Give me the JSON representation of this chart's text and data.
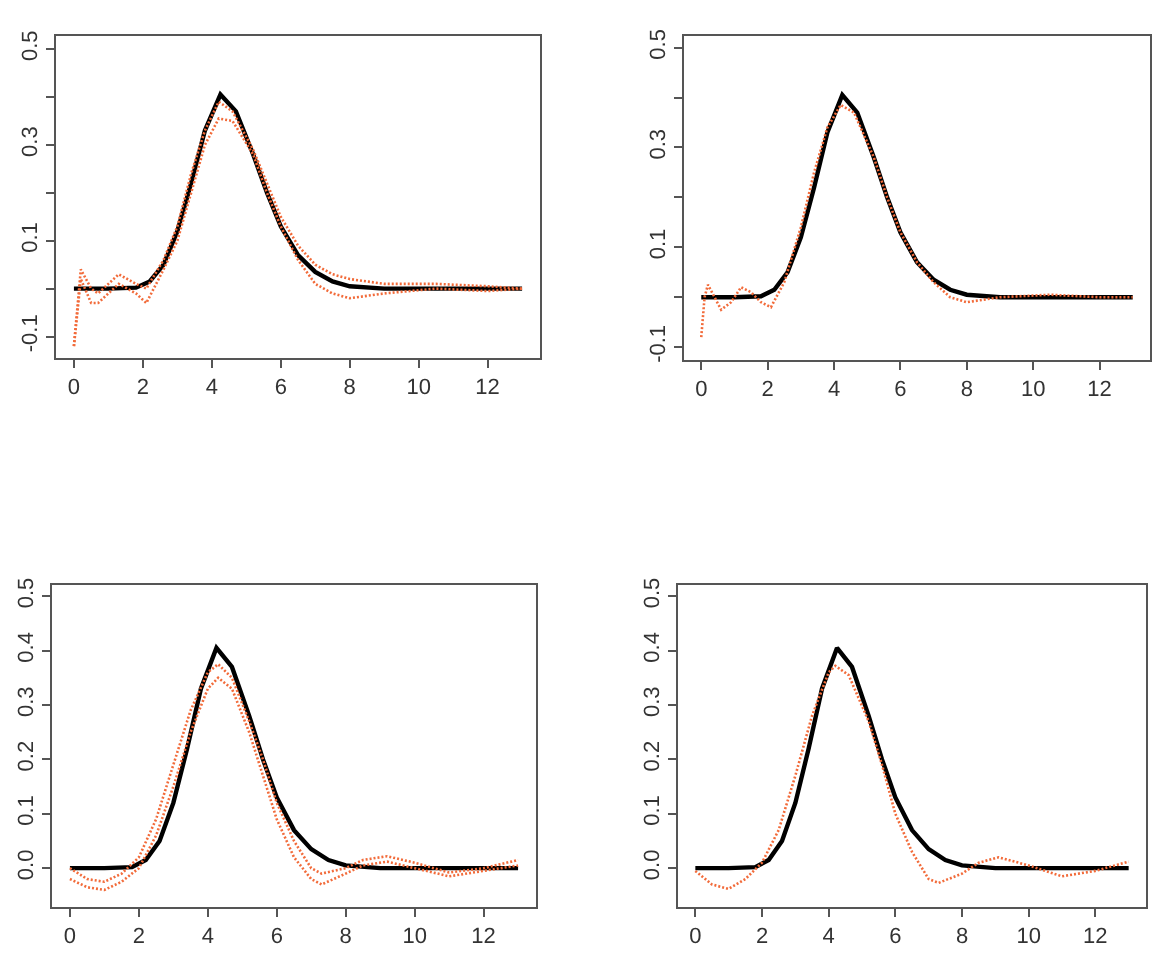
{
  "chart_data": [
    {
      "type": "line",
      "xlim": [
        -0.52,
        13.52
      ],
      "ylim": [
        -0.144,
        0.528
      ],
      "xticks": [
        0,
        2,
        4,
        6,
        8,
        10,
        12
      ],
      "yticks": [
        -0.1,
        {
          "value": 0,
          "label": null
        },
        0.1,
        {
          "value": 0.2,
          "label": null
        },
        0.3,
        {
          "value": 0.4,
          "label": null
        },
        0.5
      ],
      "series": [
        {
          "color": "#f26b3a",
          "line_style": "dotted",
          "x": [
            0,
            0.2,
            0.5,
            0.7,
            1.3,
            1.8,
            2.1,
            2.6,
            3,
            3.4,
            3.8,
            4.2,
            4.6,
            5.2,
            5.6,
            6,
            6.5,
            7,
            7.5,
            8,
            9,
            10.5,
            12,
            13
          ],
          "values": [
            -0.12,
            0.04,
            0.0,
            -0.01,
            0.03,
            0.01,
            0.0,
            0.06,
            0.13,
            0.24,
            0.33,
            0.39,
            0.37,
            0.29,
            0.22,
            0.15,
            0.09,
            0.05,
            0.03,
            0.02,
            0.01,
            0.01,
            0.005,
            0.0
          ]
        },
        {
          "color": "#f26b3a",
          "line_style": "dotted",
          "x": [
            0,
            0.2,
            0.5,
            0.7,
            1.3,
            1.8,
            2.1,
            2.6,
            3,
            3.4,
            3.8,
            4.2,
            4.6,
            5.2,
            5.6,
            6,
            6.5,
            7,
            7.5,
            8,
            9,
            10.5,
            12,
            13
          ],
          "values": [
            -0.12,
            0.02,
            -0.03,
            -0.03,
            0.01,
            -0.01,
            -0.03,
            0.04,
            0.1,
            0.2,
            0.3,
            0.355,
            0.35,
            0.28,
            0.2,
            0.13,
            0.06,
            0.01,
            -0.01,
            -0.02,
            -0.01,
            0.0,
            -0.005,
            0.0
          ]
        },
        {
          "color": "#000000",
          "line_style": "solid",
          "x": [
            0,
            1,
            1.8,
            2.2,
            2.6,
            3,
            3.4,
            3.8,
            4.25,
            4.7,
            5.2,
            5.6,
            6,
            6.5,
            7,
            7.5,
            8,
            9,
            13
          ],
          "values": [
            0,
            0,
            0.002,
            0.015,
            0.05,
            0.12,
            0.22,
            0.33,
            0.405,
            0.37,
            0.28,
            0.2,
            0.13,
            0.07,
            0.035,
            0.015,
            0.005,
            0,
            0
          ]
        }
      ]
    },
    {
      "type": "line",
      "xlim": [
        -0.52,
        13.52
      ],
      "ylim": [
        -0.125,
        0.524
      ],
      "xticks": [
        0,
        2,
        4,
        6,
        8,
        10,
        12
      ],
      "yticks": [
        -0.1,
        {
          "value": 0,
          "label": null
        },
        0.1,
        {
          "value": 0.2,
          "label": null
        },
        0.3,
        {
          "value": 0.4,
          "label": null
        },
        0.5
      ],
      "series": [
        {
          "color": "#f26b3a",
          "line_style": "dotted",
          "x": [
            0,
            0.1,
            0.2,
            0.4,
            0.6,
            0.9,
            1.2,
            1.5,
            1.8,
            2.1,
            2.5,
            3,
            3.4,
            3.8,
            4.2,
            4.6,
            5.2,
            5.6,
            6,
            6.5,
            7,
            7.5,
            8,
            9,
            10.5,
            12,
            13
          ],
          "values": [
            -0.08,
            0.0,
            0.025,
            0.0,
            -0.025,
            -0.01,
            0.02,
            0.01,
            -0.01,
            -0.02,
            0.03,
            0.14,
            0.25,
            0.34,
            0.385,
            0.37,
            0.28,
            0.2,
            0.13,
            0.07,
            0.03,
            0.0,
            -0.01,
            0.0,
            0.005,
            0.0,
            0.0
          ]
        },
        {
          "color": "#000000",
          "line_style": "solid",
          "x": [
            0,
            1,
            1.8,
            2.2,
            2.6,
            3,
            3.4,
            3.8,
            4.25,
            4.7,
            5.2,
            5.6,
            6,
            6.5,
            7,
            7.5,
            8,
            9,
            13
          ],
          "values": [
            0,
            0,
            0.002,
            0.015,
            0.05,
            0.12,
            0.22,
            0.33,
            0.405,
            0.37,
            0.28,
            0.2,
            0.13,
            0.07,
            0.035,
            0.015,
            0.005,
            0,
            0
          ]
        }
      ]
    },
    {
      "type": "line",
      "xlim": [
        -0.52,
        13.52
      ],
      "ylim": [
        -0.071,
        0.521
      ],
      "xticks": [
        0,
        2,
        4,
        6,
        8,
        10,
        12
      ],
      "yticks": [
        {
          "value": 0,
          "label": "0.0"
        },
        0.1,
        0.2,
        0.3,
        0.4,
        0.5
      ],
      "series": [
        {
          "color": "#f26b3a",
          "line_style": "dotted",
          "x": [
            0,
            0.5,
            1,
            1.5,
            2,
            2.5,
            3,
            3.5,
            4,
            4.3,
            4.7,
            5.2,
            5.6,
            6,
            6.5,
            7,
            7.3,
            8,
            8.5,
            9.2,
            10,
            11,
            12,
            13
          ],
          "values": [
            0.0,
            -0.02,
            -0.025,
            -0.01,
            0.02,
            0.09,
            0.19,
            0.29,
            0.36,
            0.375,
            0.35,
            0.27,
            0.2,
            0.12,
            0.05,
            0.0,
            -0.01,
            0.0,
            0.015,
            0.022,
            0.01,
            -0.008,
            0.0,
            0.015
          ]
        },
        {
          "color": "#f26b3a",
          "line_style": "dotted",
          "x": [
            0,
            0.5,
            1,
            1.5,
            2,
            2.5,
            3,
            3.5,
            4,
            4.3,
            4.7,
            5.2,
            5.6,
            6,
            6.5,
            7,
            7.3,
            8,
            8.5,
            9.2,
            10,
            11,
            12,
            13
          ],
          "values": [
            -0.02,
            -0.035,
            -0.04,
            -0.025,
            0.0,
            0.06,
            0.15,
            0.25,
            0.33,
            0.35,
            0.33,
            0.25,
            0.17,
            0.09,
            0.02,
            -0.02,
            -0.03,
            -0.01,
            0.005,
            0.012,
            0.0,
            -0.015,
            -0.005,
            0.005
          ]
        },
        {
          "color": "#000000",
          "line_style": "solid",
          "x": [
            0,
            1,
            1.8,
            2.2,
            2.6,
            3,
            3.4,
            3.8,
            4.25,
            4.7,
            5.2,
            5.6,
            6,
            6.5,
            7,
            7.5,
            8,
            9,
            13
          ],
          "values": [
            0,
            0,
            0.002,
            0.015,
            0.05,
            0.12,
            0.22,
            0.33,
            0.405,
            0.37,
            0.28,
            0.2,
            0.13,
            0.07,
            0.035,
            0.015,
            0.005,
            0,
            0
          ]
        }
      ]
    },
    {
      "type": "line",
      "xlim": [
        -0.52,
        13.52
      ],
      "ylim": [
        -0.071,
        0.521
      ],
      "xticks": [
        0,
        2,
        4,
        6,
        8,
        10,
        12
      ],
      "yticks": [
        {
          "value": 0,
          "label": "0.0"
        },
        0.1,
        0.2,
        0.3,
        0.4,
        0.5
      ],
      "series": [
        {
          "color": "#f26b3a",
          "line_style": "dotted",
          "x": [
            0,
            0.5,
            1,
            1.5,
            2,
            2.5,
            3,
            3.5,
            4,
            4.2,
            4.6,
            5.2,
            5.6,
            6,
            6.5,
            7,
            7.3,
            8,
            8.5,
            9.1,
            10,
            11,
            12,
            13
          ],
          "values": [
            -0.005,
            -0.03,
            -0.038,
            -0.02,
            0.01,
            0.07,
            0.17,
            0.28,
            0.36,
            0.372,
            0.355,
            0.27,
            0.19,
            0.1,
            0.03,
            -0.02,
            -0.027,
            -0.01,
            0.01,
            0.02,
            0.005,
            -0.015,
            -0.005,
            0.012
          ]
        },
        {
          "color": "#000000",
          "line_style": "solid",
          "x": [
            0,
            1,
            1.8,
            2.2,
            2.6,
            3,
            3.4,
            3.8,
            4.25,
            4.7,
            5.2,
            5.6,
            6,
            6.5,
            7,
            7.5,
            8,
            9,
            13
          ],
          "values": [
            0,
            0,
            0.002,
            0.015,
            0.05,
            0.12,
            0.22,
            0.33,
            0.405,
            0.37,
            0.28,
            0.2,
            0.13,
            0.07,
            0.035,
            0.015,
            0.005,
            0,
            0
          ]
        }
      ]
    }
  ]
}
